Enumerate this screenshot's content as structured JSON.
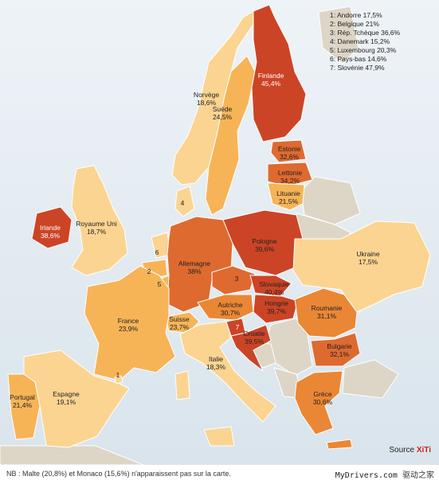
{
  "colors": {
    "bin_lt_20": "#fbd491",
    "bin_20_25": "#f6b457",
    "bin_25_32": "#ea8735",
    "bin_32_38": "#de6a30",
    "bin_gt_38": "#cc4426",
    "no_data": "#ddd6c6",
    "sea": "#dde7ee"
  },
  "countries": [
    {
      "id": "finlande",
      "name": "Finlande",
      "value": "45,4%",
      "fill_bin": "bin_gt_38"
    },
    {
      "id": "norvege",
      "name": "Norvège",
      "value": "18,6%",
      "fill_bin": "bin_lt_20"
    },
    {
      "id": "suede",
      "name": "Suède",
      "value": "24,5%",
      "fill_bin": "bin_20_25"
    },
    {
      "id": "estonie",
      "name": "Estonie",
      "value": "32,6%",
      "fill_bin": "bin_32_38"
    },
    {
      "id": "lettonie",
      "name": "Lettonie",
      "value": "34,2%",
      "fill_bin": "bin_32_38"
    },
    {
      "id": "lituanie",
      "name": "Lituanie",
      "value": "21,5%",
      "fill_bin": "bin_20_25"
    },
    {
      "id": "irlande",
      "name": "Irlande",
      "value": "38,6%",
      "fill_bin": "bin_gt_38"
    },
    {
      "id": "royaume-uni",
      "name": "Royaume Uni",
      "value": "18,7%",
      "fill_bin": "bin_lt_20"
    },
    {
      "id": "pologne",
      "name": "Pologne",
      "value": "39,6%",
      "fill_bin": "bin_gt_38"
    },
    {
      "id": "allemagne",
      "name": "Allemagne",
      "value": "38%",
      "fill_bin": "bin_32_38"
    },
    {
      "id": "ukraine",
      "name": "Ukraine",
      "value": "17,5%",
      "fill_bin": "bin_lt_20"
    },
    {
      "id": "slovaquie",
      "name": "Slovaquie",
      "value": "40,4%",
      "fill_bin": "bin_gt_38"
    },
    {
      "id": "hongrie",
      "name": "Hongrie",
      "value": "39,7%",
      "fill_bin": "bin_gt_38"
    },
    {
      "id": "autriche",
      "name": "Autriche",
      "value": "30,7%",
      "fill_bin": "bin_25_32"
    },
    {
      "id": "france",
      "name": "France",
      "value": "23,9%",
      "fill_bin": "bin_20_25"
    },
    {
      "id": "suisse",
      "name": "Suisse",
      "value": "23,7%",
      "fill_bin": "bin_20_25"
    },
    {
      "id": "roumanie",
      "name": "Roumanie",
      "value": "31,1%",
      "fill_bin": "bin_25_32"
    },
    {
      "id": "croatie",
      "name": "Croatie",
      "value": "39,5%",
      "fill_bin": "bin_gt_38"
    },
    {
      "id": "bulgarie",
      "name": "Bulgarie",
      "value": "32,1%",
      "fill_bin": "bin_32_38"
    },
    {
      "id": "italie",
      "name": "Italie",
      "value": "18,3%",
      "fill_bin": "bin_lt_20"
    },
    {
      "id": "portugal",
      "name": "Portugal",
      "value": "21,4%",
      "fill_bin": "bin_20_25"
    },
    {
      "id": "espagne",
      "name": "Espagne",
      "value": "19,1%",
      "fill_bin": "bin_lt_20"
    },
    {
      "id": "grece",
      "name": "Grèce",
      "value": "30,6%",
      "fill_bin": "bin_25_32"
    }
  ],
  "numbered_markers": [
    {
      "num": "1",
      "country": "Andorre",
      "value": "17,5%",
      "fill_bin": "bin_lt_20"
    },
    {
      "num": "2",
      "country": "Belgique",
      "value": "21",
      "fill_bin": "bin_20_25"
    },
    {
      "num": "3",
      "country": "Rép. Tchèque",
      "value": "36,6%",
      "fill_bin": "bin_32_38"
    },
    {
      "num": "4",
      "country": "Danemark",
      "value": "15,2%",
      "fill_bin": "bin_lt_20"
    },
    {
      "num": "5",
      "country": "Luxembourg",
      "value": "20,3%",
      "fill_bin": "bin_20_25"
    },
    {
      "num": "6",
      "country": "Pays-bas",
      "value": "14,6%",
      "fill_bin": "bin_lt_20"
    },
    {
      "num": "7",
      "country": "Slovénie",
      "value": "47,9%",
      "fill_bin": "bin_gt_38"
    }
  ],
  "legend_lines": [
    "1: Andorre 17,5%",
    "2: Belgique 21%",
    "3: Rép. Tchèque 36,6%",
    "4: Danemark 15,2%",
    "5: Luxembourg 20,3%",
    "6: Pays-bas 14,6%",
    "7: Slovénie 47,9%"
  ],
  "source": {
    "prefix": "Source ",
    "brand": "XiTi"
  },
  "footnote": "NB : Malte (20,8%) et Monaco (15,6%) n'apparaissent pas sur la carte.",
  "watermark": {
    "latin": "MyDrivers.com",
    "cn": "驱动之家"
  }
}
